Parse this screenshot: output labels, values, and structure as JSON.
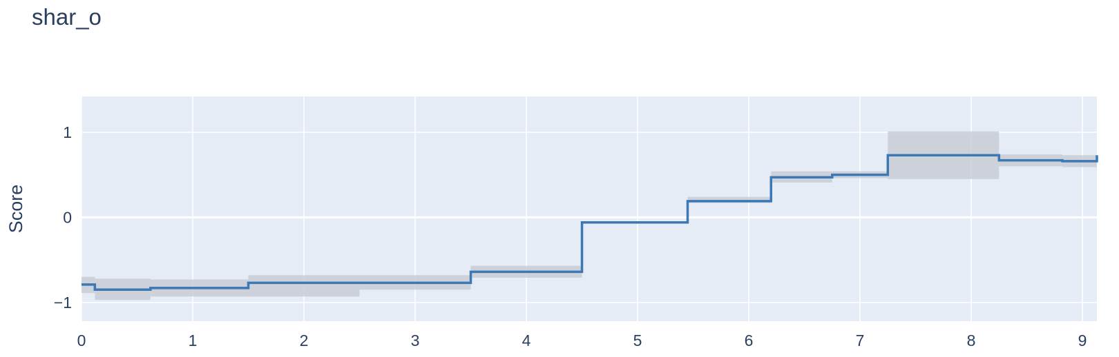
{
  "chart_data": {
    "type": "line",
    "line_shape": "step",
    "title": "shar_o",
    "xlabel": "",
    "ylabel": "Score",
    "xlim": [
      0,
      9.13
    ],
    "ylim": [
      -1.22,
      1.42
    ],
    "x_ticks": [
      0,
      1,
      2,
      3,
      4,
      5,
      6,
      7,
      8,
      9
    ],
    "y_ticks": [
      -1,
      0,
      1
    ],
    "y_tick_labels": [
      "−1",
      "0",
      "1"
    ],
    "grid": true,
    "colors": {
      "plot_bg": "#e5ecf6",
      "grid": "#ffffff",
      "line": "#3c78b4",
      "band": "#c3c8d0"
    },
    "series": [
      {
        "x_edges": [
          0,
          0.12,
          0.62,
          1.5,
          2.5,
          3.5,
          4.5,
          5.45,
          6.2,
          6.75,
          7.25,
          8.25,
          8.82,
          9.13
        ],
        "values": [
          -0.79,
          -0.85,
          -0.83,
          -0.77,
          -0.77,
          -0.64,
          -0.06,
          0.19,
          0.47,
          0.5,
          0.73,
          0.67,
          0.66,
          0.73
        ],
        "band_lower": [
          -0.89,
          -0.97,
          -0.93,
          -0.93,
          -0.85,
          -0.71,
          -0.06,
          0.17,
          0.41,
          0.46,
          0.45,
          0.6,
          0.59,
          0.62
        ],
        "band_upper": [
          -0.7,
          -0.72,
          -0.73,
          -0.68,
          -0.68,
          -0.57,
          -0.06,
          0.24,
          0.54,
          0.54,
          1.01,
          0.74,
          0.73,
          0.85
        ]
      }
    ]
  }
}
